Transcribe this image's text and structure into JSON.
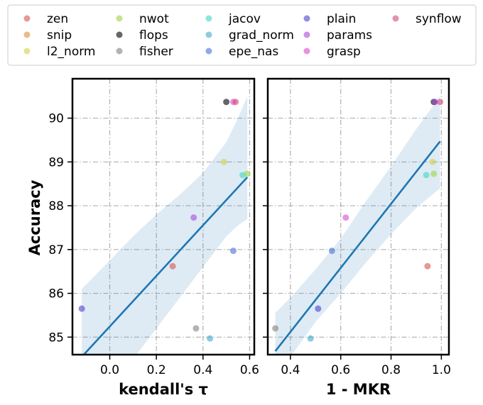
{
  "chart_data": {
    "type": "scatter",
    "ylabel": "Accuracy",
    "ylim": [
      84.6,
      90.9
    ],
    "yticks": [
      85,
      86,
      87,
      88,
      89,
      90
    ],
    "grid": true,
    "legend_position": "top",
    "legend": [
      {
        "name": "zen",
        "color": "#d9534f"
      },
      {
        "name": "snip",
        "color": "#d9903c"
      },
      {
        "name": "l2_norm",
        "color": "#cfd24a"
      },
      {
        "name": "nwot",
        "color": "#9bd44a"
      },
      {
        "name": "flops",
        "color": "#000000"
      },
      {
        "name": "fisher",
        "color": "#808080"
      },
      {
        "name": "jacov",
        "color": "#3fd6c3"
      },
      {
        "name": "grad_norm",
        "color": "#3fa9cf"
      },
      {
        "name": "epe_nas",
        "color": "#4a6fd8"
      },
      {
        "name": "plain",
        "color": "#4a3fd0"
      },
      {
        "name": "params",
        "color": "#a64ad8"
      },
      {
        "name": "grasp",
        "color": "#d84ad0"
      },
      {
        "name": "synflow",
        "color": "#d04a7a"
      }
    ],
    "panels": [
      {
        "xlabel": "kendall's τ",
        "xlim": [
          -0.16,
          0.62
        ],
        "xticks": [
          0.0,
          0.2,
          0.4,
          0.6
        ],
        "xtick_labels": [
          "0.0",
          "0.2",
          "0.4",
          "0.6"
        ],
        "points": [
          {
            "series": "plain",
            "x": -0.12,
            "y": 85.65
          },
          {
            "series": "fisher",
            "x": 0.37,
            "y": 85.2
          },
          {
            "series": "grad_norm",
            "x": 0.43,
            "y": 84.97
          },
          {
            "series": "zen",
            "x": 0.27,
            "y": 86.62
          },
          {
            "series": "params",
            "x": 0.36,
            "y": 87.73
          },
          {
            "series": "epe_nas",
            "x": 0.53,
            "y": 86.97
          },
          {
            "series": "l2_norm",
            "x": 0.49,
            "y": 89.0
          },
          {
            "series": "jacov",
            "x": 0.57,
            "y": 88.7
          },
          {
            "series": "nwot",
            "x": 0.59,
            "y": 88.73
          },
          {
            "series": "flops",
            "x": 0.5,
            "y": 90.37
          },
          {
            "series": "grasp",
            "x": 0.53,
            "y": 90.37
          },
          {
            "series": "synflow",
            "x": 0.54,
            "y": 90.37
          }
        ],
        "fit": {
          "x": [
            -0.12,
            0.59
          ],
          "y": [
            84.55,
            88.65
          ]
        },
        "ci": {
          "x": [
            -0.12,
            0.0,
            0.1,
            0.2,
            0.3,
            0.4,
            0.5,
            0.55,
            0.59
          ],
          "lower": [
            83.0,
            83.75,
            84.5,
            85.2,
            85.9,
            86.6,
            87.3,
            87.55,
            87.7
          ],
          "upper": [
            86.1,
            86.75,
            87.3,
            87.8,
            88.25,
            88.75,
            89.45,
            90.0,
            90.5
          ]
        }
      },
      {
        "xlabel": "1 - MKR",
        "xlim": [
          0.31,
          1.03
        ],
        "xticks": [
          0.4,
          0.6,
          0.8,
          1.0
        ],
        "xtick_labels": [
          "0.4",
          "0.6",
          "0.8",
          "1.0"
        ],
        "points": [
          {
            "series": "fisher",
            "x": 0.34,
            "y": 85.2
          },
          {
            "series": "grad_norm",
            "x": 0.48,
            "y": 84.97
          },
          {
            "series": "plain",
            "x": 0.51,
            "y": 85.65
          },
          {
            "series": "epe_nas",
            "x": 0.565,
            "y": 86.97
          },
          {
            "series": "grasp",
            "x": 0.62,
            "y": 87.73
          },
          {
            "series": "zen",
            "x": 0.945,
            "y": 86.62
          },
          {
            "series": "jacov",
            "x": 0.94,
            "y": 88.7
          },
          {
            "series": "l2_norm",
            "x": 0.965,
            "y": 89.0
          },
          {
            "series": "nwot",
            "x": 0.97,
            "y": 88.73
          },
          {
            "series": "flops",
            "x": 0.97,
            "y": 90.37
          },
          {
            "series": "params",
            "x": 0.975,
            "y": 90.37
          },
          {
            "series": "synflow",
            "x": 0.995,
            "y": 90.37
          }
        ],
        "fit": {
          "x": [
            0.34,
            0.995
          ],
          "y": [
            84.68,
            89.47
          ]
        },
        "ci": {
          "x": [
            0.34,
            0.4,
            0.5,
            0.6,
            0.7,
            0.8,
            0.9,
            0.995
          ],
          "lower": [
            84.05,
            84.55,
            85.35,
            86.0,
            86.7,
            87.35,
            87.95,
            88.4
          ],
          "upper": [
            85.55,
            85.9,
            86.55,
            87.25,
            88.1,
            88.9,
            89.75,
            90.5
          ]
        }
      }
    ]
  }
}
